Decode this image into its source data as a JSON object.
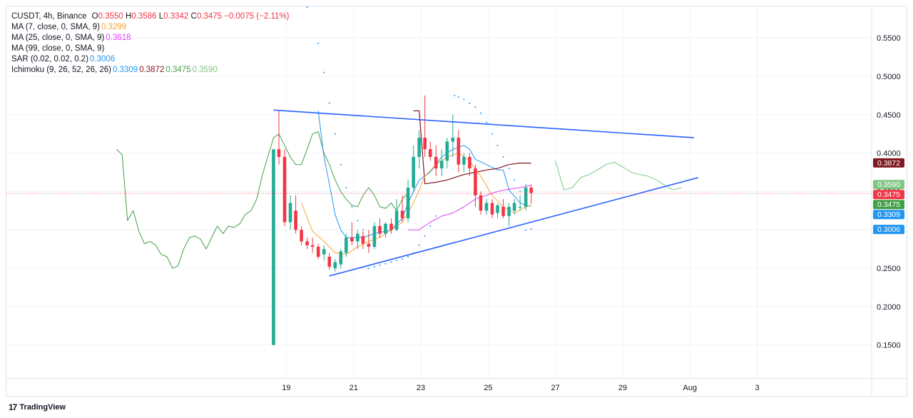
{
  "legend": {
    "header": {
      "symbol": "CUSDT, 4h, Binance",
      "o_label": "O",
      "o": "0.3550",
      "h_label": "H",
      "h": "0.3586",
      "l_label": "L",
      "l": "0.3342",
      "c_label": "C",
      "c": "0.3475",
      "change": "−0.0075 (−2.11%)",
      "color": "#f23645"
    },
    "indicators": [
      {
        "label": "MA (7, close, 0, SMA, 9)",
        "values": [
          {
            "text": "0.3299",
            "color": "#f7a532"
          }
        ]
      },
      {
        "label": "MA (25, close, 0, SMA, 9)",
        "values": [
          {
            "text": "0.3618",
            "color": "#e040fb"
          }
        ]
      },
      {
        "label": "MA (99, close, 0, SMA, 9)",
        "values": []
      },
      {
        "label": "SAR (0.02, 0.02, 0.2)",
        "values": [
          {
            "text": "0.3006",
            "color": "#2196f3"
          }
        ]
      },
      {
        "label": "Ichimoku (9, 26, 52, 26, 26)",
        "values": [
          {
            "text": "0.3309",
            "color": "#2196f3"
          },
          {
            "text": "0.3872",
            "color": "#801922"
          },
          {
            "text": "0.3475",
            "color": "#43a047"
          },
          {
            "text": "0.3590",
            "color": "#81c784"
          }
        ]
      }
    ]
  },
  "brand": {
    "name": "TradingView",
    "mark": "17"
  },
  "colors": {
    "up": "#22ab94",
    "down": "#f23645",
    "trendline": "#2962ff",
    "ma7": "#f7a532",
    "ma25": "#e040fb",
    "sar": "#2196f3",
    "tenkan": "#2196f3",
    "kijun": "#801922",
    "lagging": "#43a047",
    "span_a": "#81c784",
    "grid": "#f0f3fa",
    "axis_text": "#131722"
  },
  "chart_data": {
    "type": "candlestick",
    "y_ticks": [
      "0.1500",
      "0.2000",
      "0.2500",
      "0.3000",
      "0.3500",
      "0.4000",
      "0.4500",
      "0.5000",
      "0.5500"
    ],
    "ylim": [
      0.107,
      0.591
    ],
    "x_ticks": [
      {
        "label": "19",
        "day": 19
      },
      {
        "label": "21",
        "day": 21
      },
      {
        "label": "23",
        "day": 23
      },
      {
        "label": "25",
        "day": 25
      },
      {
        "label": "27",
        "day": 27
      },
      {
        "label": "29",
        "day": 29
      },
      {
        "label": "Aug",
        "day": 31
      },
      {
        "label": "3",
        "day": 33
      }
    ],
    "xlim": [
      10.68,
      36.4
    ],
    "candles": [
      [
        18.62,
        0.15,
        0.405,
        0.15,
        0.405
      ],
      [
        18.78,
        0.405,
        0.455,
        0.385,
        0.395
      ],
      [
        18.95,
        0.395,
        0.405,
        0.305,
        0.31
      ],
      [
        19.12,
        0.31,
        0.345,
        0.3,
        0.335
      ],
      [
        19.28,
        0.325,
        0.345,
        0.295,
        0.3
      ],
      [
        19.45,
        0.3,
        0.305,
        0.28,
        0.285
      ],
      [
        19.62,
        0.285,
        0.29,
        0.275,
        0.28
      ],
      [
        19.78,
        0.28,
        0.29,
        0.27,
        0.278
      ],
      [
        19.95,
        0.278,
        0.282,
        0.262,
        0.265
      ],
      [
        20.12,
        0.268,
        0.28,
        0.26,
        0.275
      ],
      [
        20.28,
        0.265,
        0.27,
        0.248,
        0.252
      ],
      [
        20.45,
        0.25,
        0.262,
        0.245,
        0.258
      ],
      [
        20.62,
        0.255,
        0.275,
        0.25,
        0.272
      ],
      [
        20.78,
        0.27,
        0.295,
        0.265,
        0.29
      ],
      [
        20.95,
        0.29,
        0.31,
        0.28,
        0.285
      ],
      [
        21.12,
        0.285,
        0.3,
        0.275,
        0.295
      ],
      [
        21.28,
        0.292,
        0.298,
        0.275,
        0.282
      ],
      [
        21.45,
        0.282,
        0.3,
        0.27,
        0.278
      ],
      [
        21.62,
        0.278,
        0.31,
        0.275,
        0.305
      ],
      [
        21.78,
        0.305,
        0.315,
        0.29,
        0.295
      ],
      [
        21.95,
        0.295,
        0.31,
        0.29,
        0.308
      ],
      [
        22.12,
        0.308,
        0.315,
        0.295,
        0.3
      ],
      [
        22.28,
        0.3,
        0.34,
        0.298,
        0.325
      ],
      [
        22.45,
        0.325,
        0.345,
        0.31,
        0.315
      ],
      [
        22.62,
        0.315,
        0.365,
        0.31,
        0.355
      ],
      [
        22.78,
        0.355,
        0.41,
        0.35,
        0.395
      ],
      [
        22.95,
        0.395,
        0.43,
        0.38,
        0.42
      ],
      [
        23.12,
        0.42,
        0.475,
        0.395,
        0.405
      ],
      [
        23.28,
        0.405,
        0.415,
        0.39,
        0.395
      ],
      [
        23.45,
        0.395,
        0.41,
        0.37,
        0.38
      ],
      [
        23.62,
        0.38,
        0.405,
        0.37,
        0.39
      ],
      [
        23.78,
        0.39,
        0.42,
        0.38,
        0.415
      ],
      [
        23.95,
        0.415,
        0.45,
        0.395,
        0.42
      ],
      [
        24.12,
        0.42,
        0.43,
        0.375,
        0.385
      ],
      [
        24.28,
        0.385,
        0.4,
        0.375,
        0.395
      ],
      [
        24.45,
        0.395,
        0.4,
        0.37,
        0.38
      ],
      [
        24.62,
        0.38,
        0.385,
        0.33,
        0.345
      ],
      [
        24.78,
        0.345,
        0.35,
        0.32,
        0.325
      ],
      [
        24.95,
        0.325,
        0.34,
        0.32,
        0.335
      ],
      [
        25.12,
        0.335,
        0.34,
        0.315,
        0.32
      ],
      [
        25.28,
        0.322,
        0.335,
        0.315,
        0.332
      ],
      [
        25.45,
        0.33,
        0.34,
        0.315,
        0.318
      ],
      [
        25.62,
        0.318,
        0.335,
        0.305,
        0.33
      ],
      [
        25.78,
        0.325,
        0.34,
        0.32,
        0.335
      ],
      [
        25.95,
        0.33,
        0.345,
        0.325,
        0.33
      ],
      [
        26.12,
        0.33,
        0.36,
        0.325,
        0.355
      ],
      [
        26.28,
        0.355,
        0.359,
        0.334,
        0.348
      ]
    ],
    "ma7": [
      [
        19.45,
        0.335
      ],
      [
        19.78,
        0.298
      ],
      [
        20.12,
        0.285
      ],
      [
        20.45,
        0.27
      ],
      [
        20.78,
        0.268
      ],
      [
        21.12,
        0.278
      ],
      [
        21.45,
        0.285
      ],
      [
        21.78,
        0.29
      ],
      [
        22.12,
        0.3
      ],
      [
        22.45,
        0.31
      ],
      [
        22.78,
        0.335
      ],
      [
        23.12,
        0.37
      ],
      [
        23.45,
        0.385
      ],
      [
        23.78,
        0.395
      ],
      [
        24.12,
        0.4
      ],
      [
        24.45,
        0.39
      ],
      [
        24.78,
        0.37
      ],
      [
        25.12,
        0.345
      ],
      [
        25.45,
        0.33
      ],
      [
        25.78,
        0.322
      ],
      [
        26.12,
        0.33
      ],
      [
        26.28,
        0.332
      ]
    ],
    "ma25": [
      [
        22.62,
        0.3
      ],
      [
        22.95,
        0.3
      ],
      [
        23.28,
        0.31
      ],
      [
        23.62,
        0.318
      ],
      [
        23.95,
        0.322
      ],
      [
        24.28,
        0.33
      ],
      [
        24.62,
        0.34
      ],
      [
        24.95,
        0.345
      ],
      [
        25.28,
        0.35
      ],
      [
        25.62,
        0.353
      ],
      [
        25.95,
        0.355
      ],
      [
        26.28,
        0.358
      ]
    ],
    "tenkan": [
      [
        19.95,
        0.455
      ],
      [
        20.12,
        0.395
      ],
      [
        20.28,
        0.36
      ],
      [
        20.45,
        0.32
      ],
      [
        20.62,
        0.3
      ],
      [
        20.78,
        0.29
      ],
      [
        21.28,
        0.29
      ],
      [
        21.62,
        0.295
      ],
      [
        22.12,
        0.3
      ],
      [
        22.45,
        0.315
      ],
      [
        22.62,
        0.335
      ],
      [
        22.95,
        0.365
      ],
      [
        23.28,
        0.375
      ],
      [
        23.62,
        0.395
      ],
      [
        23.95,
        0.405
      ],
      [
        24.28,
        0.41
      ],
      [
        24.45,
        0.405
      ],
      [
        24.62,
        0.392
      ],
      [
        24.95,
        0.385
      ],
      [
        25.28,
        0.378
      ],
      [
        25.45,
        0.378
      ],
      [
        25.62,
        0.352
      ],
      [
        25.95,
        0.335
      ],
      [
        26.12,
        0.332
      ],
      [
        26.28,
        0.331
      ]
    ],
    "kijun": [
      [
        22.78,
        0.455
      ],
      [
        22.95,
        0.455
      ],
      [
        23.12,
        0.36
      ],
      [
        23.45,
        0.362
      ],
      [
        23.78,
        0.365
      ],
      [
        24.28,
        0.372
      ],
      [
        24.62,
        0.375
      ],
      [
        24.95,
        0.378
      ],
      [
        25.28,
        0.38
      ],
      [
        25.62,
        0.385
      ],
      [
        25.95,
        0.387
      ],
      [
        26.28,
        0.387
      ]
    ],
    "lagging": [
      [
        13.95,
        0.405
      ],
      [
        14.12,
        0.398
      ],
      [
        14.28,
        0.312
      ],
      [
        14.45,
        0.325
      ],
      [
        14.62,
        0.298
      ],
      [
        14.78,
        0.282
      ],
      [
        14.95,
        0.285
      ],
      [
        15.12,
        0.28
      ],
      [
        15.28,
        0.268
      ],
      [
        15.45,
        0.265
      ],
      [
        15.62,
        0.25
      ],
      [
        15.78,
        0.253
      ],
      [
        15.95,
        0.275
      ],
      [
        16.12,
        0.29
      ],
      [
        16.28,
        0.292
      ],
      [
        16.45,
        0.288
      ],
      [
        16.62,
        0.275
      ],
      [
        16.78,
        0.29
      ],
      [
        16.95,
        0.305
      ],
      [
        17.12,
        0.295
      ],
      [
        17.28,
        0.305
      ],
      [
        17.45,
        0.303
      ],
      [
        17.62,
        0.308
      ],
      [
        17.78,
        0.32
      ],
      [
        17.95,
        0.325
      ],
      [
        18.12,
        0.34
      ],
      [
        18.28,
        0.37
      ],
      [
        18.45,
        0.395
      ],
      [
        18.62,
        0.42
      ],
      [
        18.78,
        0.425
      ],
      [
        18.95,
        0.41
      ],
      [
        19.12,
        0.395
      ],
      [
        19.28,
        0.385
      ],
      [
        19.45,
        0.385
      ],
      [
        19.62,
        0.405
      ],
      [
        19.78,
        0.425
      ],
      [
        19.95,
        0.428
      ],
      [
        20.12,
        0.4
      ],
      [
        20.28,
        0.385
      ],
      [
        20.45,
        0.365
      ],
      [
        20.62,
        0.35
      ],
      [
        20.78,
        0.34
      ],
      [
        20.95,
        0.332
      ],
      [
        21.12,
        0.33
      ],
      [
        21.28,
        0.345
      ],
      [
        21.45,
        0.355
      ],
      [
        21.62,
        0.345
      ],
      [
        21.78,
        0.33
      ],
      [
        21.95,
        0.328
      ],
      [
        22.12,
        0.335
      ],
      [
        22.28,
        0.325
      ],
      [
        22.45,
        0.34
      ],
      [
        22.62,
        0.348
      ]
    ],
    "span_a_future": [
      [
        27.0,
        0.39
      ],
      [
        27.25,
        0.352
      ],
      [
        27.5,
        0.355
      ],
      [
        27.75,
        0.368
      ],
      [
        28.0,
        0.372
      ],
      [
        28.25,
        0.378
      ],
      [
        28.5,
        0.385
      ],
      [
        28.75,
        0.388
      ],
      [
        29.0,
        0.382
      ],
      [
        29.25,
        0.375
      ],
      [
        29.5,
        0.372
      ],
      [
        29.75,
        0.37
      ],
      [
        30.0,
        0.365
      ],
      [
        30.25,
        0.358
      ],
      [
        30.5,
        0.352
      ],
      [
        30.75,
        0.355
      ]
    ],
    "sar": [
      [
        19.62,
        0.59
      ],
      [
        19.95,
        0.543
      ],
      [
        20.12,
        0.505
      ],
      [
        20.28,
        0.465
      ],
      [
        20.45,
        0.425
      ],
      [
        20.62,
        0.385
      ],
      [
        20.78,
        0.355
      ],
      [
        20.95,
        0.33
      ],
      [
        21.12,
        0.312
      ],
      [
        21.28,
        0.3
      ],
      [
        21.45,
        0.25
      ],
      [
        21.62,
        0.252
      ],
      [
        21.78,
        0.254
      ],
      [
        21.95,
        0.256
      ],
      [
        22.12,
        0.258
      ],
      [
        22.28,
        0.26
      ],
      [
        22.45,
        0.262
      ],
      [
        22.62,
        0.265
      ],
      [
        22.78,
        0.27
      ],
      [
        22.95,
        0.28
      ],
      [
        23.12,
        0.292
      ],
      [
        23.28,
        0.305
      ],
      [
        23.45,
        0.318
      ],
      [
        24.0,
        0.475
      ],
      [
        24.12,
        0.473
      ],
      [
        24.28,
        0.47
      ],
      [
        24.45,
        0.465
      ],
      [
        24.62,
        0.46
      ],
      [
        24.78,
        0.452
      ],
      [
        24.95,
        0.44
      ],
      [
        25.12,
        0.425
      ],
      [
        25.28,
        0.41
      ],
      [
        25.45,
        0.395
      ],
      [
        25.62,
        0.38
      ],
      [
        25.78,
        0.365
      ],
      [
        25.95,
        0.35
      ],
      [
        26.12,
        0.3
      ],
      [
        26.28,
        0.301
      ]
    ],
    "trendlines": [
      [
        [
          18.62,
          0.456
        ],
        [
          31.12,
          0.42
        ]
      ],
      [
        [
          20.28,
          0.24
        ],
        [
          31.24,
          0.368
        ]
      ]
    ],
    "current_price": 0.3475,
    "price_labels": [
      {
        "text": "0.3872",
        "value": 0.3872,
        "color": "#801922"
      },
      {
        "text": "0.3590",
        "value": 0.359,
        "color": "#81c784"
      },
      {
        "text": "0.3475",
        "value": 0.3475,
        "color": "#f23645"
      },
      {
        "text": "0.3475",
        "value": 0.3475,
        "color": "#43a047"
      },
      {
        "text": "0.3309",
        "value": 0.3309,
        "color": "#2196f3"
      },
      {
        "text": "0.3006",
        "value": 0.3006,
        "color": "#2196f3"
      }
    ]
  }
}
